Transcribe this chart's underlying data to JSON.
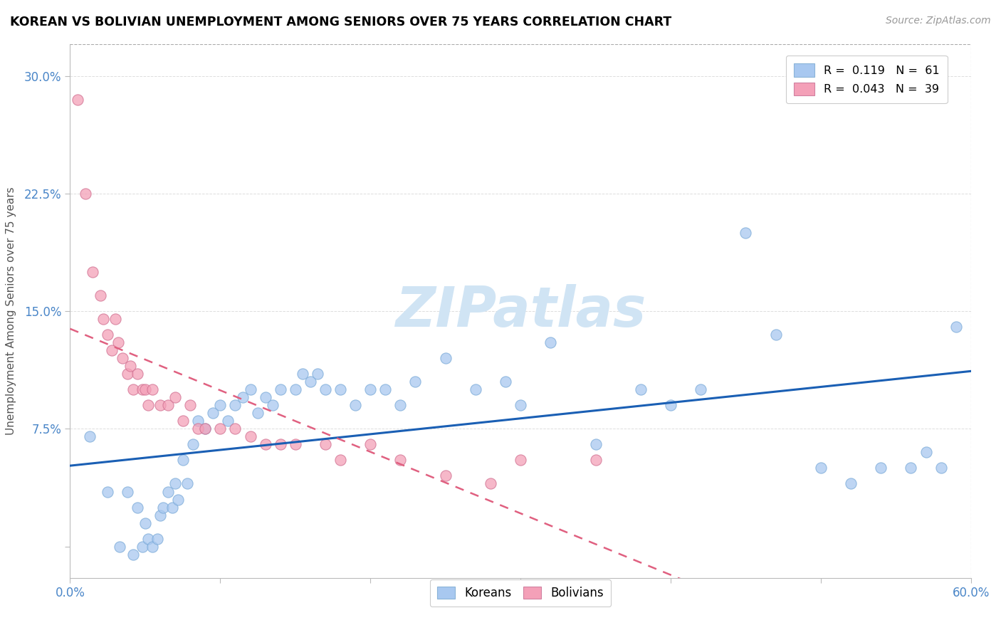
{
  "title": "KOREAN VS BOLIVIAN UNEMPLOYMENT AMONG SENIORS OVER 75 YEARS CORRELATION CHART",
  "source": "Source: ZipAtlas.com",
  "ylabel": "Unemployment Among Seniors over 75 years",
  "xlim": [
    0.0,
    0.6
  ],
  "ylim": [
    -0.02,
    0.32
  ],
  "xticks": [
    0.0,
    0.1,
    0.2,
    0.3,
    0.4,
    0.5,
    0.6
  ],
  "xticklabels": [
    "0.0%",
    "",
    "",
    "",
    "",
    "",
    "60.0%"
  ],
  "yticks": [
    0.0,
    0.075,
    0.15,
    0.225,
    0.3
  ],
  "yticklabels": [
    "",
    "7.5%",
    "15.0%",
    "22.5%",
    "30.0%"
  ],
  "watermark": "ZIPatlas",
  "legend_korean": "R =  0.119   N =  61",
  "legend_bolivian": "R =  0.043   N =  39",
  "korean_color": "#a8c8f0",
  "bolivian_color": "#f4a0b8",
  "korean_line_color": "#1a5fb4",
  "bolivian_line_color": "#e06080",
  "koreans_x": [
    0.013,
    0.025,
    0.033,
    0.038,
    0.042,
    0.045,
    0.048,
    0.05,
    0.052,
    0.055,
    0.058,
    0.06,
    0.062,
    0.065,
    0.068,
    0.07,
    0.072,
    0.075,
    0.078,
    0.082,
    0.085,
    0.09,
    0.095,
    0.1,
    0.105,
    0.11,
    0.115,
    0.12,
    0.125,
    0.13,
    0.135,
    0.14,
    0.15,
    0.155,
    0.16,
    0.165,
    0.17,
    0.18,
    0.19,
    0.2,
    0.21,
    0.22,
    0.23,
    0.25,
    0.27,
    0.29,
    0.3,
    0.32,
    0.35,
    0.38,
    0.4,
    0.42,
    0.45,
    0.47,
    0.5,
    0.52,
    0.54,
    0.56,
    0.57,
    0.58,
    0.59
  ],
  "koreans_y": [
    0.07,
    0.035,
    0.0,
    0.035,
    -0.005,
    0.025,
    0.0,
    0.015,
    0.005,
    0.0,
    0.005,
    0.02,
    0.025,
    0.035,
    0.025,
    0.04,
    0.03,
    0.055,
    0.04,
    0.065,
    0.08,
    0.075,
    0.085,
    0.09,
    0.08,
    0.09,
    0.095,
    0.1,
    0.085,
    0.095,
    0.09,
    0.1,
    0.1,
    0.11,
    0.105,
    0.11,
    0.1,
    0.1,
    0.09,
    0.1,
    0.1,
    0.09,
    0.105,
    0.12,
    0.1,
    0.105,
    0.09,
    0.13,
    0.065,
    0.1,
    0.09,
    0.1,
    0.2,
    0.135,
    0.05,
    0.04,
    0.05,
    0.05,
    0.06,
    0.05,
    0.14
  ],
  "bolivians_x": [
    0.005,
    0.01,
    0.015,
    0.02,
    0.022,
    0.025,
    0.028,
    0.03,
    0.032,
    0.035,
    0.038,
    0.04,
    0.042,
    0.045,
    0.048,
    0.05,
    0.052,
    0.055,
    0.06,
    0.065,
    0.07,
    0.075,
    0.08,
    0.085,
    0.09,
    0.1,
    0.11,
    0.12,
    0.13,
    0.14,
    0.15,
    0.17,
    0.18,
    0.2,
    0.22,
    0.25,
    0.28,
    0.3,
    0.35
  ],
  "bolivians_y": [
    0.285,
    0.225,
    0.175,
    0.16,
    0.145,
    0.135,
    0.125,
    0.145,
    0.13,
    0.12,
    0.11,
    0.115,
    0.1,
    0.11,
    0.1,
    0.1,
    0.09,
    0.1,
    0.09,
    0.09,
    0.095,
    0.08,
    0.09,
    0.075,
    0.075,
    0.075,
    0.075,
    0.07,
    0.065,
    0.065,
    0.065,
    0.065,
    0.055,
    0.065,
    0.055,
    0.045,
    0.04,
    0.055,
    0.055
  ]
}
